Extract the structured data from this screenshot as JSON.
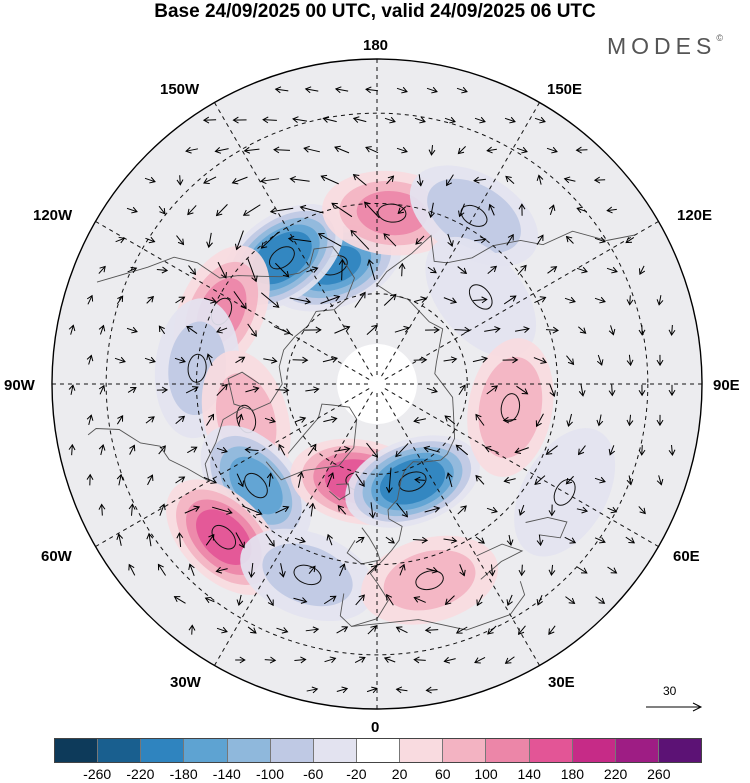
{
  "title": "Base 24/09/2025 00 UTC, valid 24/09/2025 06 UTC",
  "brand": "MODES",
  "brand_mark": "©",
  "longitudes": {
    "top": "180",
    "bottom": "0",
    "left": "90W",
    "right": "90E",
    "upper_left": "150W",
    "upper_right": "150E",
    "left_upper": "120W",
    "right_upper": "120E",
    "left_lower": "60W",
    "right_lower": "60E",
    "lower_left": "30W",
    "lower_right": "30E"
  },
  "wind_scale": {
    "value": "30"
  },
  "colorbar": {
    "colors": [
      "#0d3a5a",
      "#195f8f",
      "#2f84bf",
      "#5ea3d2",
      "#8fb8dc",
      "#bfc9e4",
      "#e3e3f0",
      "#ffffff",
      "#f9dbe0",
      "#f3b3c2",
      "#ec86a8",
      "#e35596",
      "#c62b87",
      "#9e1d84",
      "#5c1275"
    ],
    "tick_labels": [
      "-260",
      "-220",
      "-180",
      "-140",
      "-100",
      "-60",
      "-20",
      "20",
      "60",
      "100",
      "140",
      "180",
      "220",
      "260"
    ]
  },
  "anomaly_centers": [
    {
      "lon": -160,
      "lat": 62,
      "value": -200
    },
    {
      "lon": -143,
      "lat": 55,
      "value": -230
    },
    {
      "lon": 175,
      "lat": 52,
      "value": 120
    },
    {
      "lon": 150,
      "lat": 47,
      "value": -110
    },
    {
      "lon": 130,
      "lat": 60,
      "value": -70
    },
    {
      "lon": -115,
      "lat": 52,
      "value": 120
    },
    {
      "lon": -95,
      "lat": 50,
      "value": -90
    },
    {
      "lon": -75,
      "lat": 60,
      "value": 90
    },
    {
      "lon": -50,
      "lat": 55,
      "value": -170
    },
    {
      "lon": -45,
      "lat": 42,
      "value": 170
    },
    {
      "lon": -10,
      "lat": 68,
      "value": 180
    },
    {
      "lon": 20,
      "lat": 67,
      "value": -230
    },
    {
      "lon": 80,
      "lat": 60,
      "value": 110
    },
    {
      "lon": -20,
      "lat": 45,
      "value": -90
    },
    {
      "lon": 15,
      "lat": 45,
      "value": 90
    },
    {
      "lon": 60,
      "lat": 42,
      "value": -50
    }
  ]
}
